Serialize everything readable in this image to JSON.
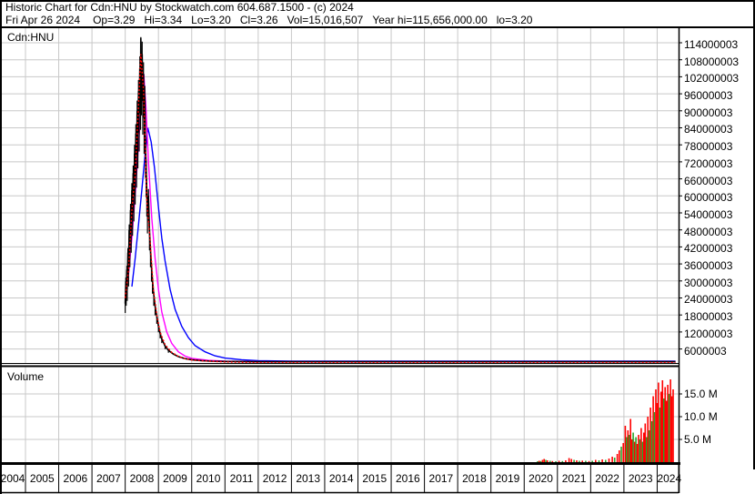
{
  "header": {
    "title": "Historic Chart for Cdn:HNU by Stockwatch.com 604.687.1500 - (c) 2024",
    "quote": {
      "date": "Fri Apr 26 2024",
      "open": "Op=3.29",
      "high": "Hi=3.34",
      "low": "Lo=3.20",
      "close": "Cl=3.26",
      "volume": "Vol=15,016,507",
      "year_high": "Year hi=115,656,000.00",
      "year_low": "lo=3.20"
    }
  },
  "price_panel": {
    "symbol_label": "Cdn:HNU"
  },
  "volume_panel": {
    "label": "Volume"
  },
  "colors": {
    "grid": "#c8c8c8",
    "border": "#000000",
    "price_line": "#000000",
    "close_markers": "#ff0000",
    "ma_fast": "#ff00ff",
    "ma_slow": "#0000ff",
    "volume_up": "#2aa52a",
    "volume_down": "#ff0000",
    "background": "#ffffff"
  },
  "chart_data": {
    "type": "line",
    "title": "Historic Chart for Cdn:HNU",
    "x_axis": {
      "unit": "year",
      "years": [
        "2004",
        "2005",
        "2006",
        "2007",
        "2008",
        "2009",
        "2010",
        "2011",
        "2012",
        "2013",
        "2014",
        "2015",
        "2016",
        "2017",
        "2018",
        "2019",
        "2020",
        "2021",
        "2022",
        "2023",
        "2024"
      ],
      "range": [
        2004,
        2024.6
      ],
      "grid": true
    },
    "price_axis": {
      "side": "right",
      "labels": [
        "114000003",
        "108000003",
        "102000003",
        "96000003",
        "90000003",
        "84000003",
        "78000003",
        "72000003",
        "66000003",
        "60000003",
        "54000003",
        "48000003",
        "42000003",
        "36000003",
        "30000003",
        "24000003",
        "18000003",
        "12000003",
        "6000003"
      ],
      "values_m": [
        114,
        108,
        102,
        96,
        90,
        84,
        78,
        72,
        66,
        60,
        54,
        48,
        42,
        36,
        30,
        24,
        18,
        12,
        6
      ],
      "range_m": [
        0,
        117
      ],
      "grid": true
    },
    "volume_axis": {
      "side": "right",
      "labels": [
        "15.0 M",
        "10.0 M",
        "5.0 M"
      ],
      "values_m": [
        15,
        10,
        5
      ],
      "range_m": [
        0,
        21
      ],
      "grid": true
    },
    "series": [
      {
        "name": "price-close",
        "color": "#000000",
        "style": "solid",
        "width": 1.6,
        "points": [
          [
            2008.0,
            22
          ],
          [
            2008.02,
            30
          ],
          [
            2008.03,
            25
          ],
          [
            2008.05,
            34
          ],
          [
            2008.06,
            27
          ],
          [
            2008.08,
            40
          ],
          [
            2008.1,
            33
          ],
          [
            2008.12,
            48
          ],
          [
            2008.14,
            41
          ],
          [
            2008.16,
            55
          ],
          [
            2008.18,
            47
          ],
          [
            2008.2,
            62
          ],
          [
            2008.22,
            54
          ],
          [
            2008.24,
            68
          ],
          [
            2008.26,
            60
          ],
          [
            2008.28,
            75
          ],
          [
            2008.3,
            67
          ],
          [
            2008.32,
            82
          ],
          [
            2008.34,
            74
          ],
          [
            2008.36,
            90
          ],
          [
            2008.38,
            82
          ],
          [
            2008.4,
            97
          ],
          [
            2008.42,
            89
          ],
          [
            2008.44,
            105
          ],
          [
            2008.46,
            98
          ],
          [
            2008.47,
            115.7
          ],
          [
            2008.49,
            104
          ],
          [
            2008.51,
            110
          ],
          [
            2008.53,
            96
          ],
          [
            2008.55,
            103
          ],
          [
            2008.57,
            88
          ],
          [
            2008.59,
            95
          ],
          [
            2008.61,
            78
          ],
          [
            2008.63,
            70
          ],
          [
            2008.65,
            62
          ],
          [
            2008.67,
            55
          ],
          [
            2008.7,
            60
          ],
          [
            2008.73,
            48
          ],
          [
            2008.76,
            41
          ],
          [
            2008.79,
            35
          ],
          [
            2008.82,
            30
          ],
          [
            2008.86,
            25
          ],
          [
            2008.9,
            21
          ],
          [
            2008.95,
            17.5
          ],
          [
            2009.0,
            14
          ],
          [
            2009.05,
            11.5
          ],
          [
            2009.1,
            9.5
          ],
          [
            2009.2,
            7
          ],
          [
            2009.3,
            5.5
          ],
          [
            2009.45,
            4.2
          ],
          [
            2009.6,
            3.3
          ],
          [
            2009.8,
            2.6
          ],
          [
            2010.0,
            2.2
          ],
          [
            2010.3,
            1.9
          ],
          [
            2010.6,
            1.7
          ],
          [
            2011.0,
            1.6
          ],
          [
            2012.0,
            1.5
          ],
          [
            2024.55,
            1.5
          ]
        ]
      },
      {
        "name": "close-markers",
        "color": "#ff0000",
        "style": "dashed",
        "width": 1.4,
        "points": [
          [
            2008.0,
            24
          ],
          [
            2008.1,
            34
          ],
          [
            2008.2,
            55
          ],
          [
            2008.3,
            68
          ],
          [
            2008.4,
            92
          ],
          [
            2008.47,
            110
          ],
          [
            2008.55,
            97
          ],
          [
            2008.65,
            58
          ],
          [
            2008.75,
            44
          ],
          [
            2008.85,
            27
          ],
          [
            2008.95,
            18
          ],
          [
            2009.05,
            12
          ],
          [
            2009.2,
            7.5
          ],
          [
            2009.4,
            4.8
          ],
          [
            2009.6,
            3.4
          ],
          [
            2009.8,
            2.6
          ],
          [
            2010.0,
            2.1
          ],
          [
            2010.5,
            1.7
          ],
          [
            2011.0,
            1.4
          ],
          [
            2012.0,
            1.2
          ],
          [
            2024.55,
            1.2
          ]
        ]
      },
      {
        "name": "ma-fast",
        "color": "#ff00ff",
        "style": "solid",
        "width": 1.4,
        "points": [
          [
            2008.08,
            30
          ],
          [
            2008.2,
            45
          ],
          [
            2008.3,
            60
          ],
          [
            2008.4,
            78
          ],
          [
            2008.5,
            95
          ],
          [
            2008.56,
            103
          ],
          [
            2008.62,
            92
          ],
          [
            2008.7,
            72
          ],
          [
            2008.8,
            52
          ],
          [
            2008.9,
            38
          ],
          [
            2009.0,
            27
          ],
          [
            2009.1,
            19
          ],
          [
            2009.25,
            12
          ],
          [
            2009.4,
            8
          ],
          [
            2009.6,
            5
          ],
          [
            2009.8,
            3.5
          ],
          [
            2010.0,
            2.7
          ],
          [
            2010.5,
            2.0
          ],
          [
            2011.0,
            1.7
          ],
          [
            2012.0,
            1.5
          ],
          [
            2024.55,
            1.5
          ]
        ]
      },
      {
        "name": "ma-slow",
        "color": "#0000ff",
        "style": "solid",
        "width": 1.4,
        "points": [
          [
            2008.2,
            28
          ],
          [
            2008.3,
            38
          ],
          [
            2008.4,
            50
          ],
          [
            2008.5,
            62
          ],
          [
            2008.6,
            75
          ],
          [
            2008.68,
            84
          ],
          [
            2008.78,
            79
          ],
          [
            2008.88,
            70
          ],
          [
            2009.0,
            56
          ],
          [
            2009.1,
            45
          ],
          [
            2009.2,
            37
          ],
          [
            2009.35,
            27
          ],
          [
            2009.5,
            20
          ],
          [
            2009.7,
            14
          ],
          [
            2009.9,
            10
          ],
          [
            2010.1,
            7.2
          ],
          [
            2010.4,
            5.0
          ],
          [
            2010.7,
            3.6
          ],
          [
            2011.0,
            2.8
          ],
          [
            2011.5,
            2.2
          ],
          [
            2012.0,
            1.9
          ],
          [
            2013.0,
            1.7
          ],
          [
            2024.55,
            1.7
          ]
        ]
      }
    ],
    "volume_bars": {
      "unit": "millions of shares",
      "bars": [
        [
          2020.4,
          0.2,
          "g"
        ],
        [
          2020.45,
          0.3,
          "r"
        ],
        [
          2020.5,
          0.25,
          "g"
        ],
        [
          2020.55,
          0.5,
          "r"
        ],
        [
          2020.6,
          0.7,
          "r"
        ],
        [
          2020.65,
          0.5,
          "g"
        ],
        [
          2020.7,
          0.4,
          "r"
        ],
        [
          2020.78,
          0.3,
          "g"
        ],
        [
          2020.85,
          0.25,
          "r"
        ],
        [
          2020.95,
          0.2,
          "g"
        ],
        [
          2021.05,
          0.3,
          "r"
        ],
        [
          2021.15,
          0.25,
          "g"
        ],
        [
          2021.25,
          0.4,
          "r"
        ],
        [
          2021.35,
          0.9,
          "r"
        ],
        [
          2021.42,
          0.7,
          "r"
        ],
        [
          2021.5,
          0.5,
          "g"
        ],
        [
          2021.58,
          0.4,
          "r"
        ],
        [
          2021.66,
          0.3,
          "g"
        ],
        [
          2021.75,
          0.35,
          "r"
        ],
        [
          2021.85,
          0.3,
          "g"
        ],
        [
          2021.95,
          0.25,
          "r"
        ],
        [
          2022.05,
          0.3,
          "g"
        ],
        [
          2022.15,
          0.5,
          "r"
        ],
        [
          2022.25,
          0.4,
          "g"
        ],
        [
          2022.35,
          0.6,
          "r"
        ],
        [
          2022.45,
          0.5,
          "g"
        ],
        [
          2022.55,
          0.8,
          "r"
        ],
        [
          2022.65,
          1.2,
          "r"
        ],
        [
          2022.72,
          1.0,
          "g"
        ],
        [
          2022.8,
          1.8,
          "r"
        ],
        [
          2022.86,
          2.6,
          "r"
        ],
        [
          2022.92,
          3.4,
          "g"
        ],
        [
          2022.98,
          4.2,
          "r"
        ],
        [
          2023.04,
          8.0,
          "r"
        ],
        [
          2023.08,
          5.5,
          "g"
        ],
        [
          2023.12,
          7.0,
          "r"
        ],
        [
          2023.16,
          6.0,
          "g"
        ],
        [
          2023.2,
          9.5,
          "r"
        ],
        [
          2023.24,
          5.0,
          "r"
        ],
        [
          2023.28,
          6.5,
          "g"
        ],
        [
          2023.32,
          4.5,
          "r"
        ],
        [
          2023.36,
          5.5,
          "g"
        ],
        [
          2023.4,
          4.0,
          "r"
        ],
        [
          2023.44,
          6.0,
          "r"
        ],
        [
          2023.48,
          5.0,
          "g"
        ],
        [
          2023.52,
          7.5,
          "r"
        ],
        [
          2023.56,
          4.5,
          "g"
        ],
        [
          2023.6,
          6.5,
          "r"
        ],
        [
          2023.64,
          8.5,
          "r"
        ],
        [
          2023.68,
          5.5,
          "g"
        ],
        [
          2023.72,
          10.0,
          "r"
        ],
        [
          2023.76,
          7.0,
          "g"
        ],
        [
          2023.8,
          12.0,
          "r"
        ],
        [
          2023.84,
          9.0,
          "g"
        ],
        [
          2023.88,
          14.5,
          "r"
        ],
        [
          2023.92,
          11.0,
          "g"
        ],
        [
          2023.96,
          16.0,
          "r"
        ],
        [
          2024.0,
          13.0,
          "r"
        ],
        [
          2024.04,
          17.5,
          "r"
        ],
        [
          2024.08,
          12.0,
          "g"
        ],
        [
          2024.12,
          15.5,
          "r"
        ],
        [
          2024.16,
          18.0,
          "r"
        ],
        [
          2024.2,
          14.0,
          "g"
        ],
        [
          2024.24,
          16.5,
          "r"
        ],
        [
          2024.28,
          13.5,
          "r"
        ],
        [
          2024.32,
          17.0,
          "r"
        ],
        [
          2024.36,
          15.0,
          "g"
        ],
        [
          2024.4,
          18.2,
          "r"
        ],
        [
          2024.44,
          14.5,
          "r"
        ],
        [
          2024.48,
          16.0,
          "r"
        ]
      ]
    },
    "annotations": {
      "symbol": "Cdn:HNU",
      "sub_panel_label": "Volume",
      "peak_value": "115,656,000.00 (Year hi)"
    }
  }
}
